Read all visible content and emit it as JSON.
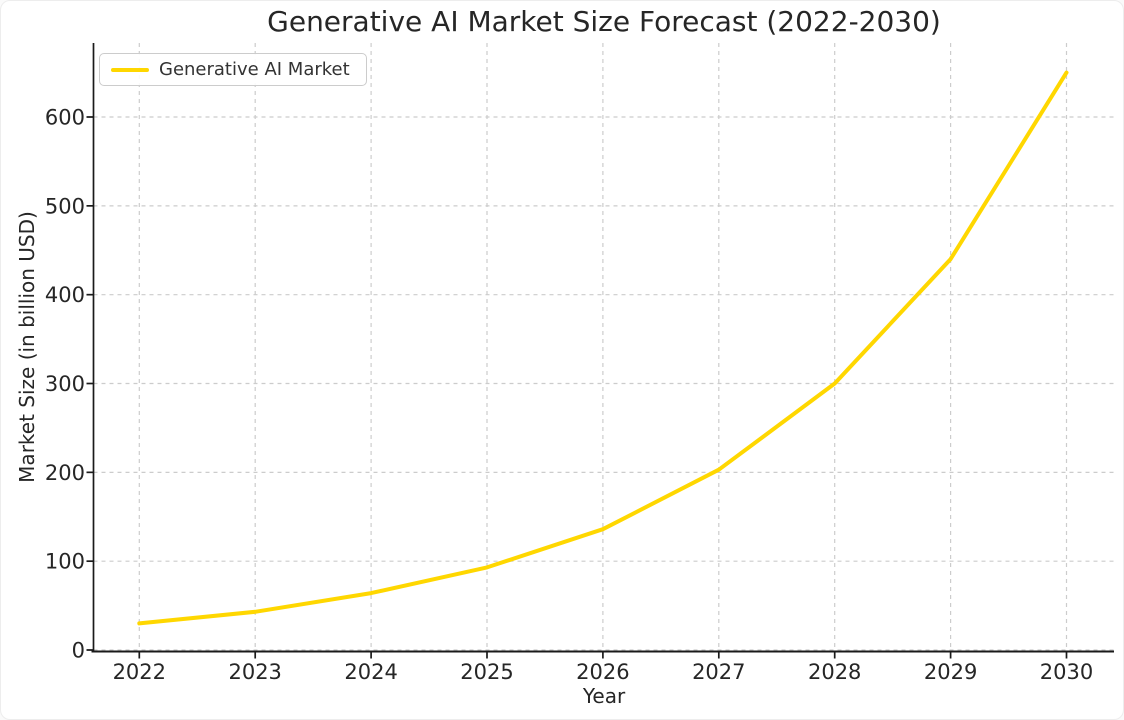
{
  "chart_data": {
    "type": "line",
    "title": "Generative AI Market Size Forecast (2022-2030)",
    "xlabel": "Year",
    "ylabel": "Market Size (in billion USD)",
    "categories": [
      "2022",
      "2023",
      "2024",
      "2025",
      "2026",
      "2027",
      "2028",
      "2029",
      "2030"
    ],
    "series": [
      {
        "name": "Generative AI Market",
        "color": "#FFD700",
        "values": [
          30,
          43,
          64,
          93,
          136,
          203,
          300,
          440,
          650
        ]
      }
    ],
    "y_ticks": [
      0,
      100,
      200,
      300,
      400,
      500,
      600
    ],
    "ylim": [
      0,
      680
    ],
    "grid": {
      "style": "dashed",
      "on": true
    },
    "legend": {
      "position": "upper-left",
      "entries": [
        "Generative AI Market"
      ]
    },
    "colors": {
      "line": "#FFD700",
      "grid": "#cccccc",
      "axis": "#1a1a1a",
      "text": "#262626",
      "background": "#ffffff",
      "legend_border": "#cccccc"
    }
  }
}
